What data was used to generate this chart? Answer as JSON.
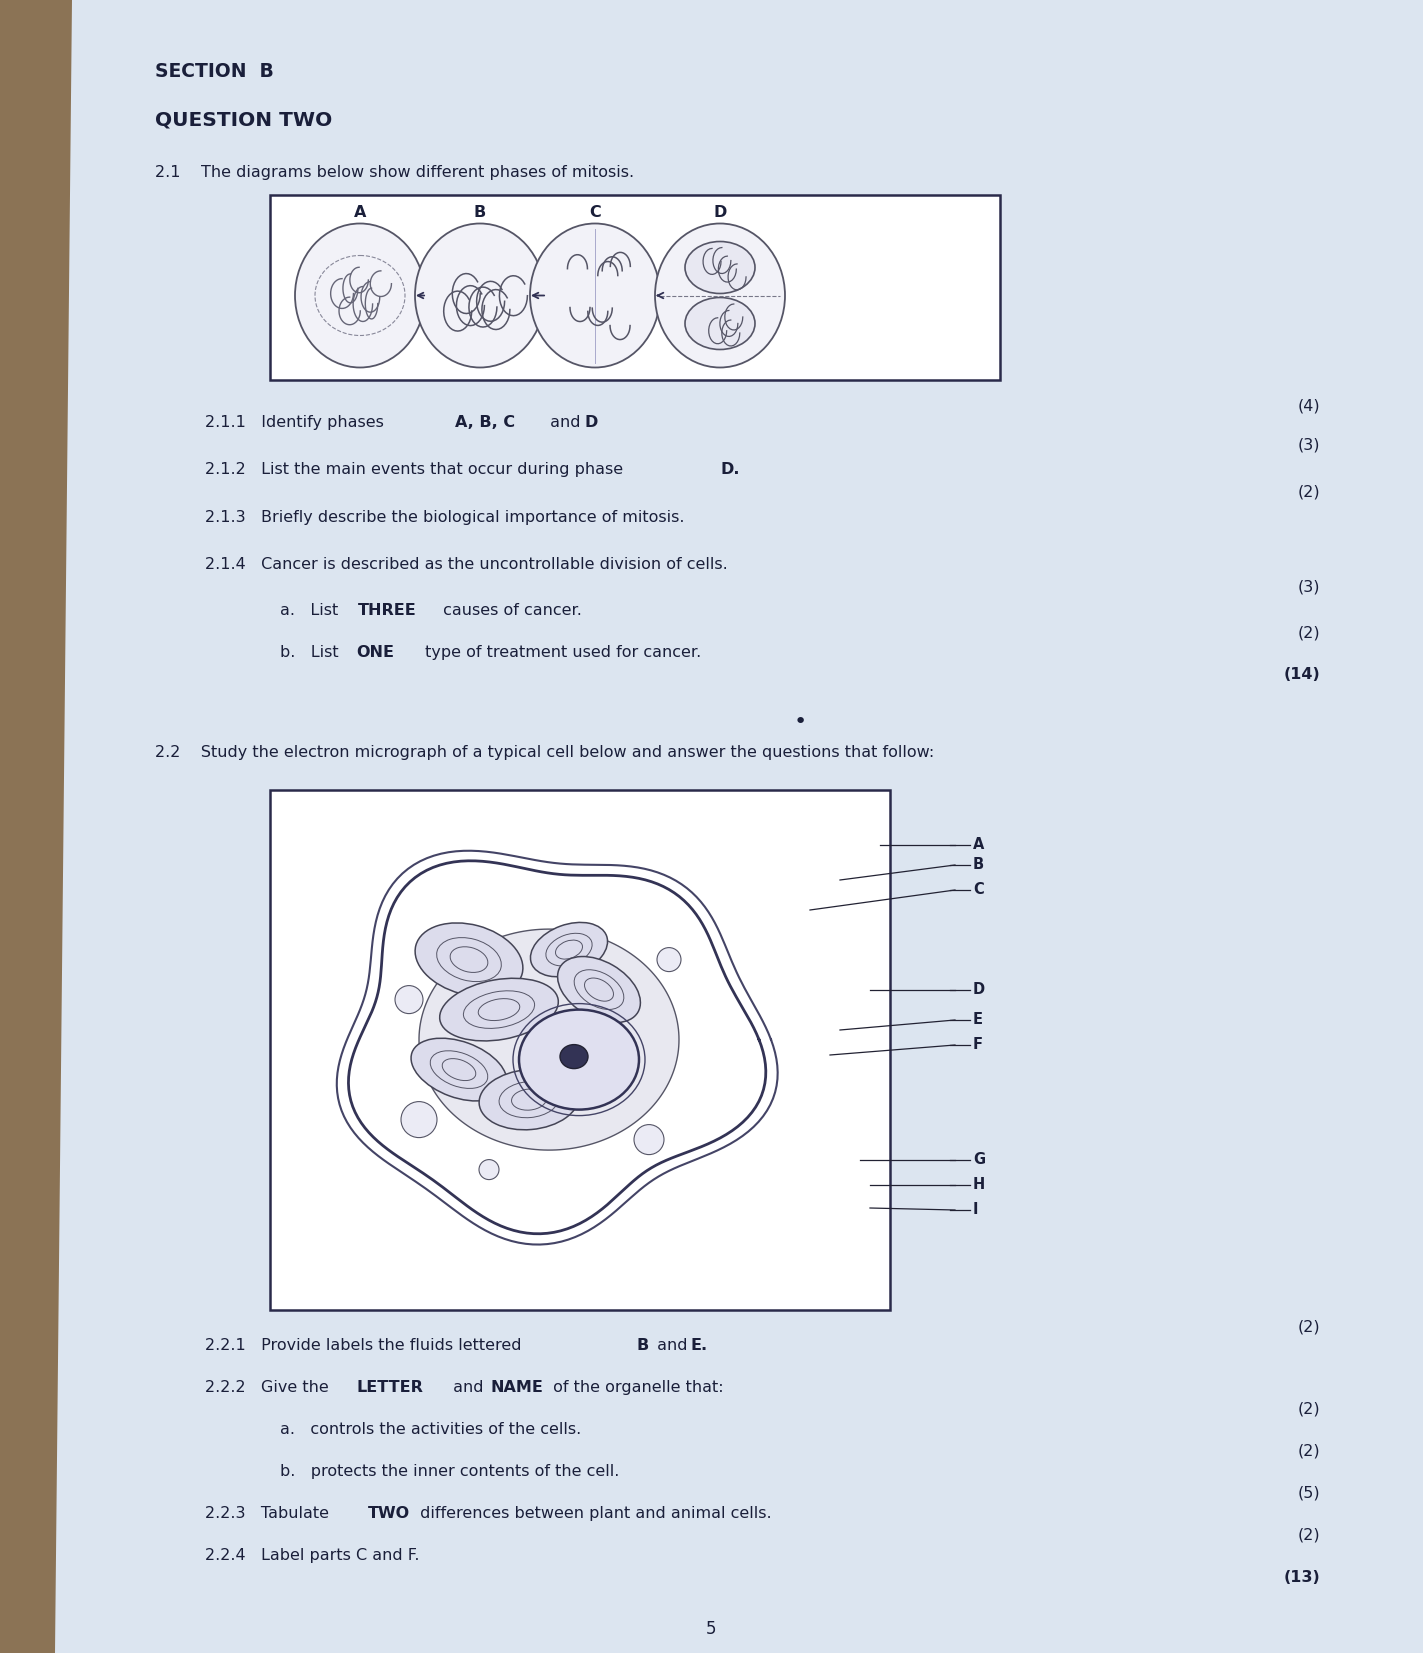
{
  "bg_color": "#8B7355",
  "paper_color": "#dce5f0",
  "text_color": "#1a1f3a",
  "section_b": "SECTION  B",
  "question_two": "QUESTION TWO",
  "page_num": "5"
}
